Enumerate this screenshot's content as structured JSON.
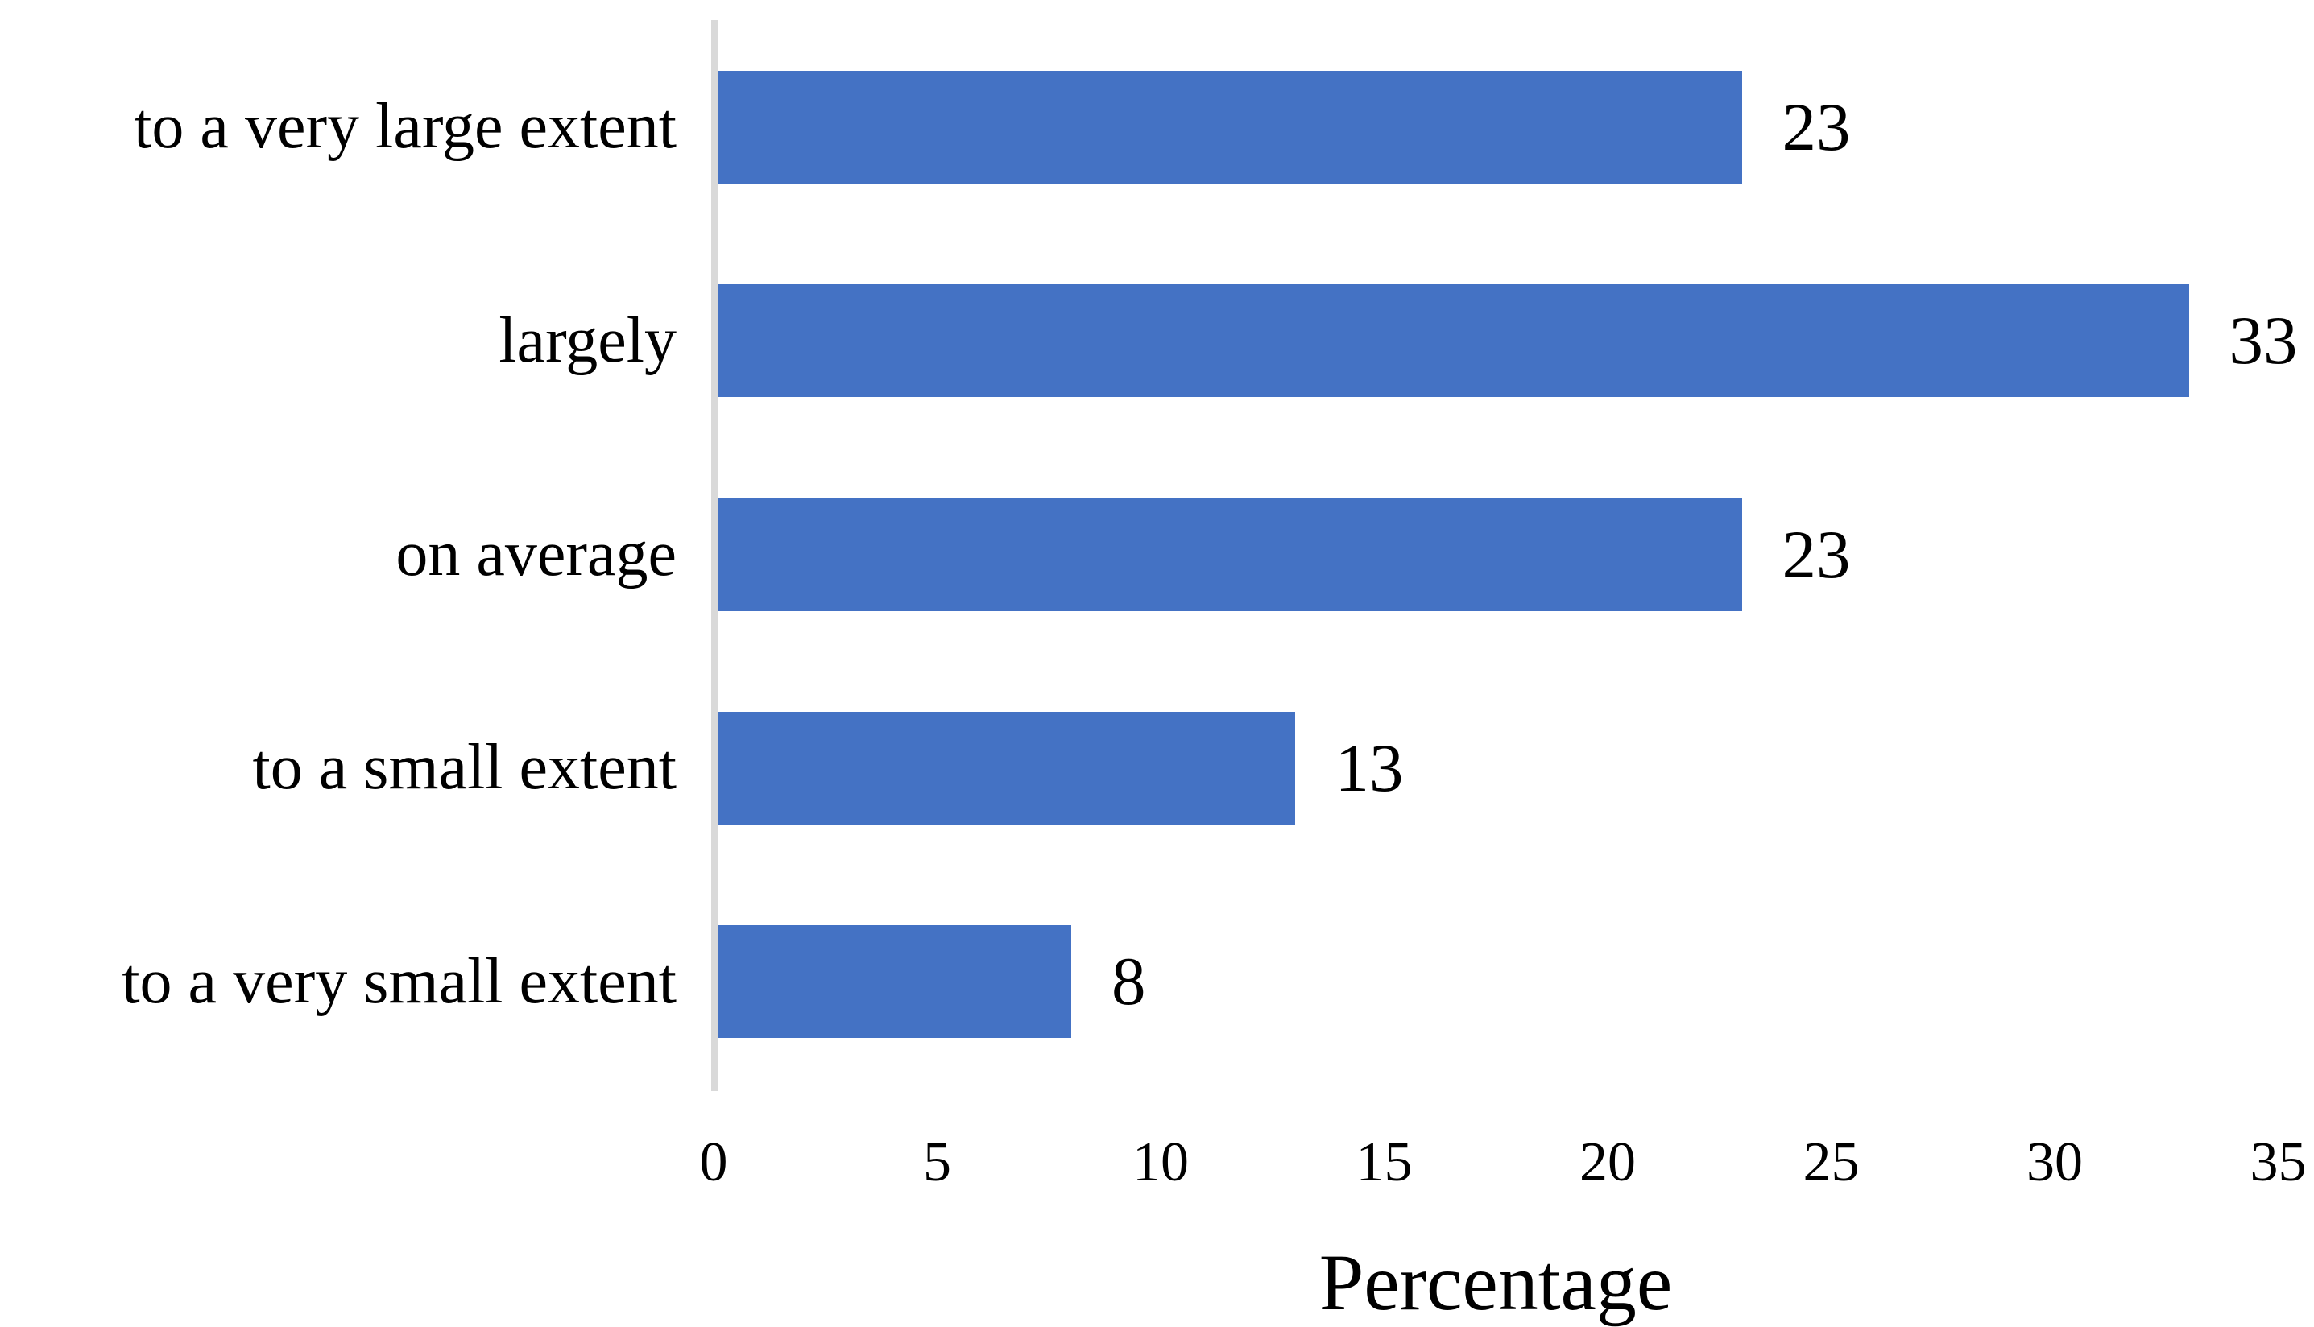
{
  "chart_data": {
    "type": "bar",
    "orientation": "horizontal",
    "title": "",
    "xlabel": "Percentage",
    "ylabel": "",
    "categories": [
      "to a very large extent",
      "largely",
      "on average",
      "to a small extent",
      "to a very small extent"
    ],
    "values": [
      23,
      33,
      23,
      13,
      8
    ],
    "value_labels": [
      "23",
      "33",
      "23",
      "13",
      "8"
    ],
    "xlim": [
      0,
      35
    ],
    "xticks": [
      0,
      5,
      10,
      15,
      20,
      25,
      30,
      35
    ],
    "grid": false,
    "legend": null,
    "bar_color": "#4472C4",
    "axis_line_color": "#D9D9D9",
    "text_color": "#000000",
    "background_color": "#FFFFFF"
  }
}
